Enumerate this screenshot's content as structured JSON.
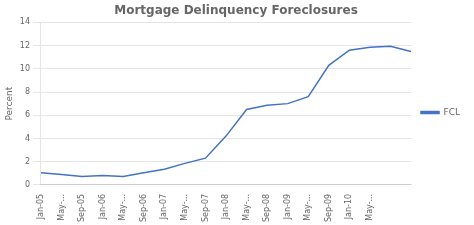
{
  "chart_data": {
    "type": "line",
    "title": "Mortgage Delinquency Foreclosures",
    "ylabel": "Percent",
    "categories": [
      "Jan-05",
      "May-...",
      "Sep-05",
      "Jan-06",
      "May-...",
      "Sep-06",
      "Jan-07",
      "May-...",
      "Sep-07",
      "Jan-08",
      "May-...",
      "Sep-08",
      "Jan-09",
      "May-...",
      "Sep-09",
      "Jan-10",
      "May-...",
      null,
      null
    ],
    "series": [
      {
        "name": "FCL",
        "color": "#4472C4",
        "values": [
          1.05,
          0.9,
          0.72,
          0.8,
          0.72,
          1.05,
          1.35,
          1.85,
          2.3,
          4.2,
          6.5,
          6.85,
          7.0,
          7.6,
          10.3,
          11.6,
          11.85,
          11.95,
          11.5
        ]
      }
    ],
    "ylim": [
      0,
      14
    ],
    "yticks": [
      0,
      2,
      4,
      6,
      8,
      10,
      12,
      14
    ],
    "grid": true,
    "legend": "right"
  }
}
